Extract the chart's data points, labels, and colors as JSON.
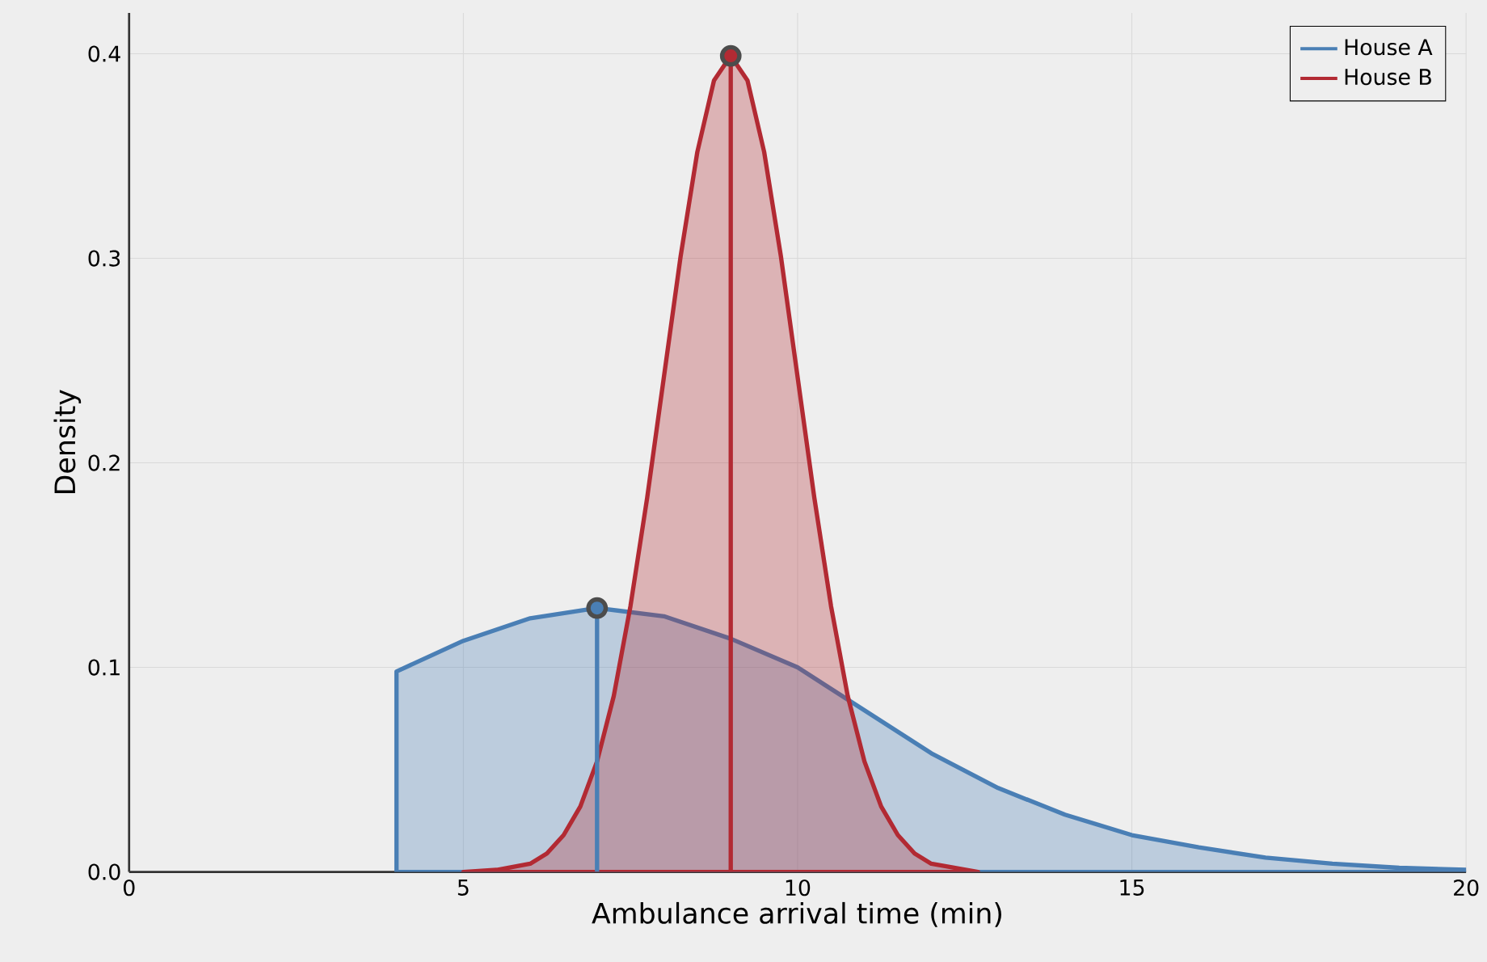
{
  "chart_data": {
    "type": "area",
    "xlabel": "Ambulance arrival time (min)",
    "ylabel": "Density",
    "xlim": [
      0,
      20
    ],
    "ylim": [
      0,
      0.42
    ],
    "xticks": [
      0,
      5,
      10,
      15,
      20
    ],
    "yticks": [
      {
        "value": 0,
        "label": "0.0"
      },
      0.1,
      0.2,
      0.3,
      0.4
    ],
    "grid": true,
    "legend": "top right",
    "series": [
      {
        "name": "House A",
        "color": "#4a7fb5",
        "x": [
          4,
          5,
          6,
          7,
          8,
          9,
          10,
          11,
          12,
          13,
          14,
          15,
          16,
          17,
          18,
          19,
          20
        ],
        "values": [
          0.098,
          0.113,
          0.124,
          0.129,
          0.125,
          0.114,
          0.1,
          0.079,
          0.058,
          0.041,
          0.028,
          0.018,
          0.012,
          0.007,
          0.004,
          0.002,
          0.001
        ]
      },
      {
        "name": "House B",
        "color": "#b22a33",
        "x": [
          5,
          5.5,
          6,
          6.25,
          6.5,
          6.75,
          7,
          7.25,
          7.5,
          7.75,
          8,
          8.25,
          8.5,
          8.75,
          9,
          9.25,
          9.5,
          9.75,
          10,
          10.25,
          10.5,
          10.75,
          11,
          11.25,
          11.5,
          11.75,
          12,
          12.7
        ],
        "values": [
          0.0,
          0.001,
          0.004,
          0.009,
          0.018,
          0.032,
          0.054,
          0.086,
          0.13,
          0.183,
          0.242,
          0.301,
          0.352,
          0.387,
          0.399,
          0.387,
          0.352,
          0.301,
          0.242,
          0.183,
          0.13,
          0.086,
          0.054,
          0.032,
          0.018,
          0.009,
          0.004,
          0.0
        ]
      },
      {
        "type": "lollipop",
        "color": "#4a7fb5",
        "marker": "circle",
        "x": [
          7
        ],
        "values": [
          0.129
        ]
      },
      {
        "type": "lollipop",
        "color": "#b22a33",
        "marker": "circle",
        "x": [
          9
        ],
        "values": [
          0.399
        ]
      }
    ]
  }
}
